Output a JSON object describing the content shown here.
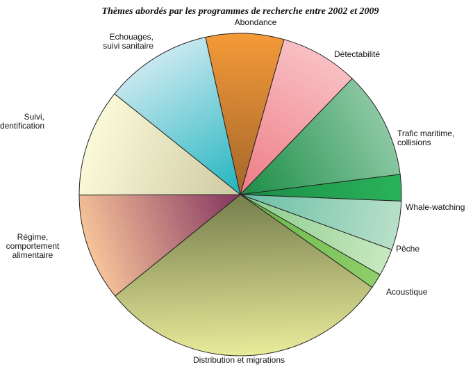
{
  "chart_data": {
    "type": "pie",
    "title": "Thèmes abordés par les programmes de recherche entre 2002 et 2009",
    "slices": [
      {
        "label": [
          "Abondance"
        ],
        "value": 8,
        "colors": [
          "#f49a38",
          "#a8692c"
        ]
      },
      {
        "label": [
          "Détectabilité"
        ],
        "value": 8,
        "colors": [
          "#f8c0c4",
          "#ef7f88"
        ]
      },
      {
        "label": [
          "Trafic maritime,",
          "collisions"
        ],
        "value": 11,
        "colors": [
          "#8cc8a4",
          "#1f8f48"
        ]
      },
      {
        "label": [
          "Whale-watching"
        ],
        "value": 2.7,
        "colors": [
          "#2ab35a",
          "#1d8e48"
        ]
      },
      {
        "label": [
          "Pêche"
        ],
        "value": 5,
        "colors": [
          "#b8e0c8",
          "#6cbfa8"
        ]
      },
      {
        "label": [
          "Acoustique"
        ],
        "value": 2.8,
        "colors": [
          "#c8e8c0",
          "#8acd8c"
        ]
      },
      {
        "label": [
          ""
        ],
        "value": 1.5,
        "colors": [
          "#8ece6a",
          "#6bb84a"
        ]
      },
      {
        "label": [
          "Distribution et migrations"
        ],
        "value": 30,
        "colors": [
          "#e9eb9a",
          "#7b8350"
        ]
      },
      {
        "label": [
          "Régime,",
          "comportement",
          "alimentaire"
        ],
        "value": 11,
        "colors": [
          "#f6c49a",
          "#8a3b63"
        ]
      },
      {
        "label": [
          "Suivi,",
          "photo identification"
        ],
        "value": 11,
        "colors": [
          "#fbfad8",
          "#cfcba4"
        ]
      },
      {
        "label": [
          "Echouages,",
          "suivi sanitaire"
        ],
        "value": 11,
        "colors": [
          "#c8e8f0",
          "#2ab7c0"
        ]
      }
    ]
  }
}
